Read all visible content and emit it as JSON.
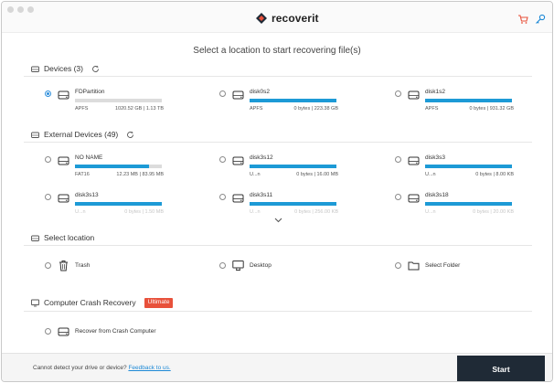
{
  "app": {
    "name": "recoverit"
  },
  "main_title": "Select a location to start recovering file(s)",
  "sections": {
    "devices": {
      "label": "Devices (3)"
    },
    "external": {
      "label": "External Devices (49)"
    },
    "location": {
      "label": "Select location"
    },
    "crash": {
      "label": "Computer Crash Recovery",
      "badge": "Ultimate"
    }
  },
  "devices": [
    {
      "name": "FDPartition",
      "fs": "APFS",
      "size": "1020.52 GB | 1.13 TB",
      "used_fraction": 0.0,
      "selected": true
    },
    {
      "name": "disk0s2",
      "fs": "APFS",
      "size": "0 bytes | 223.38 GB",
      "used_fraction": 1.0,
      "selected": false
    },
    {
      "name": "disk1s2",
      "fs": "APFS",
      "size": "0 bytes | 931.32 GB",
      "used_fraction": 1.0,
      "selected": false
    }
  ],
  "external_devices": [
    {
      "name": "NO NAME",
      "fs": "FAT16",
      "size": "12.23 MB | 83.95 MB",
      "used_fraction": 0.85
    },
    {
      "name": "disk3s12",
      "fs": "U...n",
      "size": "0 bytes | 16.00 MB",
      "used_fraction": 1.0
    },
    {
      "name": "disk3s3",
      "fs": "U...n",
      "size": "0 bytes | 8.00 KB",
      "used_fraction": 1.0
    },
    {
      "name": "disk3s13",
      "fs": "U...n",
      "size": "0 bytes | 1.50 MB",
      "used_fraction": 1.0
    },
    {
      "name": "disk3s11",
      "fs": "U...n",
      "size": "0 bytes | 256.00 KB",
      "used_fraction": 1.0
    },
    {
      "name": "disk3s18",
      "fs": "U...n",
      "size": "0 bytes | 20.00 KB",
      "used_fraction": 1.0
    }
  ],
  "locations": [
    {
      "label": "Trash",
      "icon": "trash-icon"
    },
    {
      "label": "Desktop",
      "icon": "monitor-icon"
    },
    {
      "label": "Select Folder",
      "icon": "folder-icon"
    }
  ],
  "crash_option": {
    "label": "Recover from Crash Computer"
  },
  "footer": {
    "prompt": "Cannot detect your drive or device?",
    "link": "Feedback to us.",
    "start": "Start"
  },
  "colors": {
    "accent": "#1d9ad6",
    "badge": "#e8513b",
    "start_button": "#1f2a36",
    "brand_red": "#e8513b"
  }
}
